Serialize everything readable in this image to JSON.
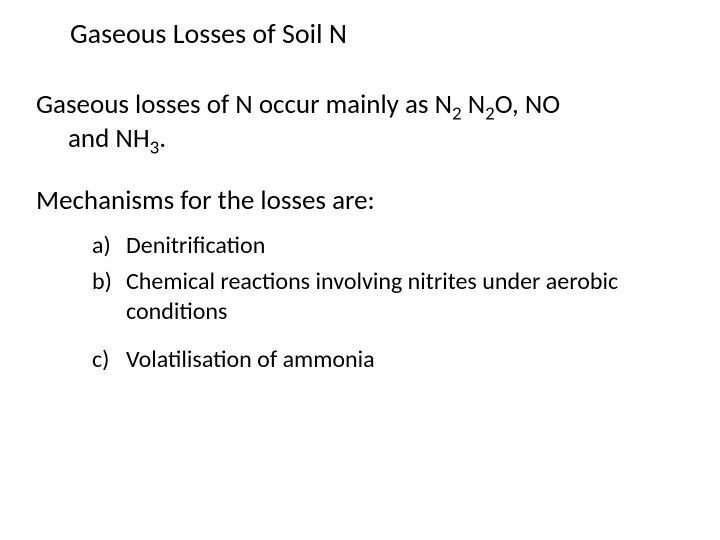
{
  "colors": {
    "background": "#ffffff",
    "text": "#000000"
  },
  "typography": {
    "font_family": "Calibri",
    "title_fontsize_pt": 28,
    "body_fontsize_pt": 27,
    "list_fontsize_pt": 24
  },
  "title": "Gaseous Losses of Soil N",
  "intro": {
    "line1_pre": "Gaseous losses of N occur mainly as N",
    "n2_sub": "2",
    "sep1": " N",
    "n2o_sub1": "2",
    "n2o_mid": "O, NO",
    "line2_pre": "and NH",
    "nh3_sub": "3",
    "line2_post": "."
  },
  "mechanisms_label": "Mechanisms for the losses are:",
  "list": {
    "a_marker": "a)",
    "a_text": "Denitrification",
    "b_marker": "b)",
    "b_text": "Chemical reactions involving nitrites under aerobic conditions",
    "c_marker": "c)",
    "c_text": "Volatilisation of ammonia"
  }
}
